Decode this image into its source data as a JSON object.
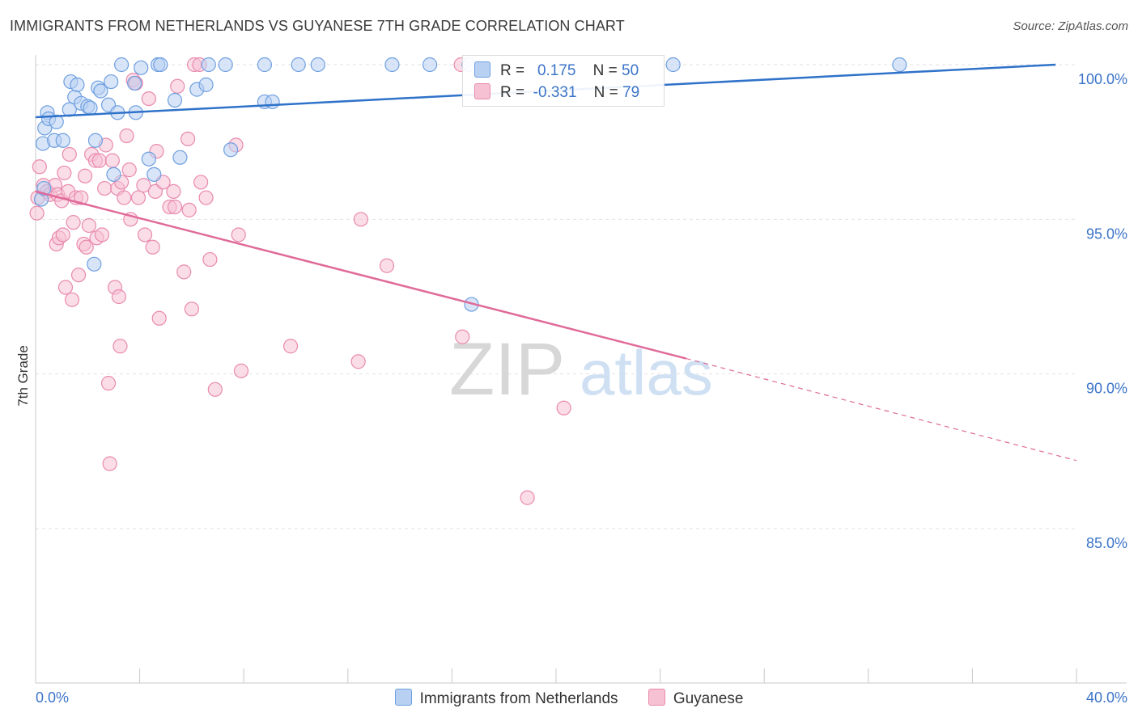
{
  "header": {
    "title": "IMMIGRANTS FROM NETHERLANDS VS GUYANESE 7TH GRADE CORRELATION CHART",
    "source": "Source: ZipAtlas.com"
  },
  "watermark": {
    "zip": "ZIP",
    "atlas": "atlas"
  },
  "legend_top": {
    "rows": [
      {
        "r_label": "R =",
        "r_value": "0.175",
        "n_label": "N =",
        "n_value": "50"
      },
      {
        "r_label": "R =",
        "r_value": "-0.331",
        "n_label": "N =",
        "n_value": "79"
      }
    ]
  },
  "legend_bottom": {
    "series1": "Immigrants from Netherlands",
    "series2": "Guyanese"
  },
  "colors": {
    "blue_fill": "#b8d0f2",
    "blue_stroke": "#6e9fe0",
    "blue_line": "#2f72c9",
    "pink_fill": "#f6c1d3",
    "pink_stroke": "#e98aae",
    "pink_line": "#e06a99",
    "axis_text": "#3b74c8",
    "grid": "#e2e2e2"
  },
  "chart_data": {
    "type": "scatter",
    "title": "IMMIGRANTS FROM NETHERLANDS VS GUYANESE 7TH GRADE CORRELATION CHART",
    "xlabel": "",
    "ylabel": "7th Grade",
    "xlim": [
      0,
      40
    ],
    "ylim": [
      80.5,
      100.8
    ],
    "x_tick_labels": [
      "0.0%",
      "40.0%"
    ],
    "y_ticks": [
      85,
      90,
      95,
      100
    ],
    "y_tick_labels": [
      "85.0%",
      "90.0%",
      "95.0%",
      "100.0%"
    ],
    "grid": true,
    "series": [
      {
        "name": "Immigrants from Netherlands",
        "color": "#6e9fe0",
        "r": 0.175,
        "n": 50,
        "trend": {
          "x0": 0,
          "y0": 98.3,
          "x1": 39.2,
          "y1": 100.0,
          "dashed_to": null
        },
        "points": [
          [
            0.22,
            95.65
          ],
          [
            0.28,
            97.45
          ],
          [
            0.32,
            96.0
          ],
          [
            0.35,
            97.95
          ],
          [
            0.45,
            98.45
          ],
          [
            0.5,
            98.25
          ],
          [
            0.72,
            97.55
          ],
          [
            0.8,
            98.15
          ],
          [
            1.05,
            97.55
          ],
          [
            1.3,
            98.55
          ],
          [
            1.35,
            99.45
          ],
          [
            1.5,
            98.95
          ],
          [
            1.6,
            99.35
          ],
          [
            1.75,
            98.75
          ],
          [
            2.0,
            98.65
          ],
          [
            2.1,
            98.6
          ],
          [
            2.3,
            97.55
          ],
          [
            2.25,
            93.55
          ],
          [
            2.4,
            99.25
          ],
          [
            2.5,
            99.15
          ],
          [
            2.8,
            98.7
          ],
          [
            2.9,
            99.45
          ],
          [
            3.0,
            96.45
          ],
          [
            3.15,
            98.45
          ],
          [
            3.3,
            100.0
          ],
          [
            3.8,
            99.4
          ],
          [
            3.85,
            98.45
          ],
          [
            4.05,
            99.9
          ],
          [
            4.35,
            96.95
          ],
          [
            4.55,
            96.45
          ],
          [
            4.7,
            100.0
          ],
          [
            4.8,
            100.0
          ],
          [
            5.35,
            98.85
          ],
          [
            5.55,
            97.0
          ],
          [
            6.2,
            99.2
          ],
          [
            6.55,
            99.35
          ],
          [
            6.65,
            100.0
          ],
          [
            7.3,
            100.0
          ],
          [
            7.5,
            97.25
          ],
          [
            8.8,
            100.0
          ],
          [
            8.8,
            98.8
          ],
          [
            9.1,
            98.8
          ],
          [
            10.1,
            100.0
          ],
          [
            10.85,
            100.0
          ],
          [
            13.7,
            100.0
          ],
          [
            15.15,
            100.0
          ],
          [
            16.65,
            100.0
          ],
          [
            16.75,
            92.25
          ],
          [
            24.5,
            100.0
          ],
          [
            33.2,
            100.0
          ]
        ]
      },
      {
        "name": "Guyanese",
        "color": "#e98aae",
        "r": -0.331,
        "n": 79,
        "trend": {
          "x0": 0,
          "y0": 95.9,
          "x1": 25.0,
          "y1": 90.5,
          "dashed_to": [
            40.0,
            87.2
          ]
        },
        "points": [
          [
            0.05,
            95.2
          ],
          [
            0.08,
            95.7
          ],
          [
            0.15,
            96.7
          ],
          [
            0.3,
            96.1
          ],
          [
            0.45,
            95.9
          ],
          [
            0.55,
            95.8
          ],
          [
            0.75,
            96.1
          ],
          [
            0.8,
            94.2
          ],
          [
            0.85,
            95.8
          ],
          [
            0.9,
            94.4
          ],
          [
            1.0,
            95.6
          ],
          [
            1.05,
            94.5
          ],
          [
            1.1,
            96.5
          ],
          [
            1.15,
            92.8
          ],
          [
            1.25,
            95.9
          ],
          [
            1.3,
            97.1
          ],
          [
            1.4,
            92.4
          ],
          [
            1.45,
            94.9
          ],
          [
            1.55,
            95.7
          ],
          [
            1.65,
            93.2
          ],
          [
            1.75,
            95.7
          ],
          [
            1.85,
            94.2
          ],
          [
            1.9,
            96.4
          ],
          [
            1.95,
            94.1
          ],
          [
            2.05,
            94.8
          ],
          [
            2.15,
            97.1
          ],
          [
            2.3,
            96.9
          ],
          [
            2.35,
            94.4
          ],
          [
            2.45,
            96.9
          ],
          [
            2.55,
            94.5
          ],
          [
            2.65,
            96.0
          ],
          [
            2.7,
            97.4
          ],
          [
            2.8,
            89.7
          ],
          [
            2.85,
            87.1
          ],
          [
            2.95,
            96.9
          ],
          [
            3.05,
            92.8
          ],
          [
            3.15,
            96.0
          ],
          [
            3.2,
            92.5
          ],
          [
            3.25,
            90.9
          ],
          [
            3.3,
            96.2
          ],
          [
            3.4,
            95.7
          ],
          [
            3.5,
            97.7
          ],
          [
            3.6,
            96.6
          ],
          [
            3.65,
            95.0
          ],
          [
            3.75,
            99.5
          ],
          [
            3.85,
            99.4
          ],
          [
            3.95,
            95.7
          ],
          [
            4.15,
            96.1
          ],
          [
            4.2,
            94.5
          ],
          [
            4.35,
            98.9
          ],
          [
            4.5,
            94.1
          ],
          [
            4.6,
            95.9
          ],
          [
            4.65,
            97.2
          ],
          [
            4.75,
            91.8
          ],
          [
            4.9,
            96.2
          ],
          [
            5.15,
            95.4
          ],
          [
            5.3,
            95.9
          ],
          [
            5.35,
            95.4
          ],
          [
            5.45,
            99.3
          ],
          [
            5.7,
            93.3
          ],
          [
            5.85,
            97.6
          ],
          [
            5.9,
            95.3
          ],
          [
            6.0,
            92.1
          ],
          [
            6.1,
            100.0
          ],
          [
            6.3,
            100.0
          ],
          [
            6.35,
            96.2
          ],
          [
            6.55,
            95.7
          ],
          [
            6.7,
            93.7
          ],
          [
            6.9,
            89.5
          ],
          [
            7.7,
            97.4
          ],
          [
            7.8,
            94.5
          ],
          [
            7.9,
            90.1
          ],
          [
            9.8,
            90.9
          ],
          [
            12.4,
            90.4
          ],
          [
            12.5,
            95.0
          ],
          [
            13.5,
            93.5
          ],
          [
            16.35,
            100.0
          ],
          [
            16.4,
            91.2
          ],
          [
            20.3,
            88.9
          ],
          [
            18.9,
            86.0
          ]
        ]
      }
    ]
  }
}
